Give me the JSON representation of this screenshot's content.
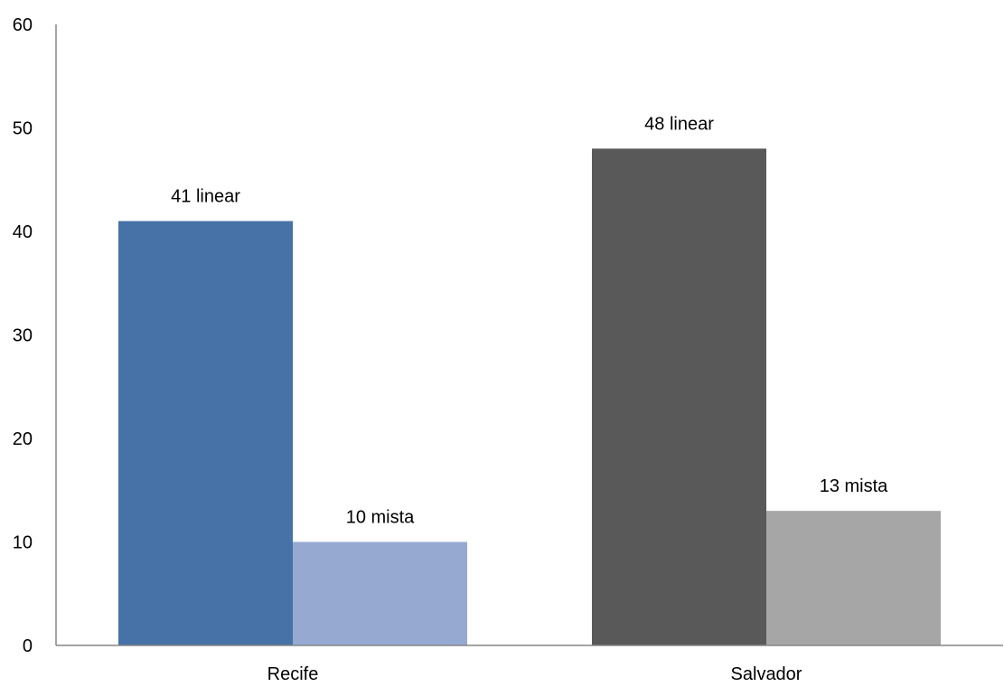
{
  "chart_data": {
    "type": "bar",
    "title": "",
    "xlabel": "",
    "ylabel": "",
    "ylim": [
      0,
      60
    ],
    "yticks": [
      0,
      10,
      20,
      30,
      40,
      50,
      60
    ],
    "grid": false,
    "legend": "none",
    "categories": [
      "Recife",
      "Salvador"
    ],
    "bars": [
      {
        "category": "Recife",
        "value": 41,
        "label": "41 linear",
        "color": "#4672a8"
      },
      {
        "category": "Recife",
        "value": 10,
        "label": "10 mista",
        "color": "#95a9d1"
      },
      {
        "category": "Salvador",
        "value": 48,
        "label": "48 linear",
        "color": "#595959"
      },
      {
        "category": "Salvador",
        "value": 13,
        "label": "13 mista",
        "color": "#a6a6a6"
      }
    ]
  }
}
